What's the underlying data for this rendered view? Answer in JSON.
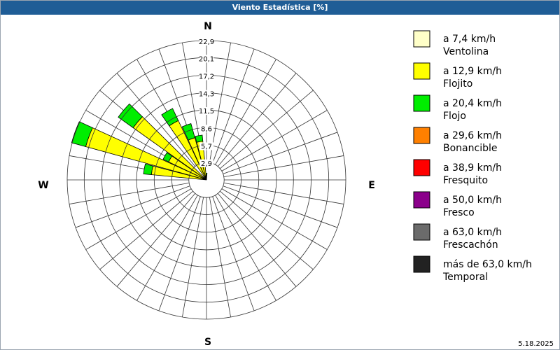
{
  "chart_data": {
    "type": "windrose",
    "title": "Viento Estadística [%]",
    "footer": "5.18.2025",
    "compass": [
      "N",
      "E",
      "S",
      "W"
    ],
    "directions": [
      0,
      10,
      20,
      30,
      40,
      50,
      60,
      70,
      80,
      90,
      100,
      110,
      120,
      130,
      140,
      150,
      160,
      170,
      180,
      190,
      200,
      210,
      220,
      230,
      240,
      250,
      260,
      270,
      280,
      290,
      300,
      310,
      320,
      330,
      340,
      350
    ],
    "rlim": [
      0,
      22.9
    ],
    "rticks": [
      {
        "value": 2.9,
        "label": "2,9"
      },
      {
        "value": 5.7,
        "label": "5,7"
      },
      {
        "value": 8.6,
        "label": "8,6"
      },
      {
        "value": 11.5,
        "label": "11,5"
      },
      {
        "value": 14.3,
        "label": "14,3"
      },
      {
        "value": 17.2,
        "label": "17,2"
      },
      {
        "value": 20.1,
        "label": "20,1"
      },
      {
        "value": 22.9,
        "label": "22,9"
      }
    ],
    "grid": true,
    "series": [
      {
        "name": "a 7,4 km/h",
        "description": "Ventolina",
        "color": "#ffffc8",
        "values": [
          0,
          0,
          0,
          0,
          0,
          0,
          0,
          0,
          0,
          0,
          0,
          0,
          0,
          0,
          0,
          0,
          0,
          0,
          0,
          0,
          0,
          0,
          0,
          0,
          0,
          0,
          0,
          0,
          0,
          0,
          0,
          0,
          0,
          0,
          0,
          0
        ]
      },
      {
        "name": "a 12,9 km/h",
        "description": "Flojito",
        "color": "#ffff00",
        "values": [
          0.8,
          0,
          0,
          0,
          0,
          0,
          0,
          0,
          0,
          0,
          0,
          0,
          0,
          0,
          0,
          0,
          0,
          0,
          0,
          0,
          0,
          0,
          0,
          0,
          0,
          0,
          0,
          0,
          9.1,
          20.6,
          6.9,
          14.8,
          0,
          10.8,
          7.2,
          6.4
        ]
      },
      {
        "name": "a 20,4 km/h",
        "description": "Flojo",
        "color": "#00ee00",
        "values": [
          0.3,
          0,
          0,
          0,
          0,
          0,
          0,
          0,
          0,
          0,
          0,
          0,
          0,
          0,
          0,
          0,
          0,
          0,
          0,
          0,
          0,
          0,
          0,
          0,
          0,
          0,
          0,
          0,
          1.3,
          2.4,
          1.0,
          3.0,
          0,
          2.2,
          2.4,
          1.0
        ]
      },
      {
        "name": "a 29,6 km/h",
        "description": "Bonancible",
        "color": "#ff8000",
        "values": [
          0,
          0,
          0,
          0,
          0,
          0,
          0,
          0,
          0,
          0,
          0,
          0,
          0,
          0,
          0,
          0,
          0,
          0,
          0,
          0,
          0,
          0,
          0,
          0,
          0,
          0,
          0,
          0,
          0,
          0,
          0,
          0,
          0,
          0,
          0,
          0
        ]
      },
      {
        "name": "a 38,9 km/h",
        "description": "Fresquito",
        "color": "#ff0000",
        "values": [
          0,
          0,
          0,
          0,
          0,
          0,
          0,
          0,
          0,
          0,
          0,
          0,
          0,
          0,
          0,
          0,
          0,
          0,
          0,
          0,
          0,
          0,
          0,
          0,
          0,
          0,
          0,
          0,
          0,
          0,
          0,
          0,
          0,
          0,
          0,
          0
        ]
      },
      {
        "name": "a 50,0 km/h",
        "description": "Fresco",
        "color": "#8b008b",
        "values": [
          0,
          0,
          0,
          0,
          0,
          0,
          0,
          0,
          0,
          0,
          0,
          0,
          0,
          0,
          0,
          0,
          0,
          0,
          0,
          0,
          0,
          0,
          0,
          0,
          0,
          0,
          0,
          0,
          0,
          0,
          0,
          0,
          0,
          0,
          0,
          0
        ]
      },
      {
        "name": "a 63,0 km/h",
        "description": "Frescachón",
        "color": "#6b6b6b",
        "values": [
          0,
          0,
          0,
          0,
          0,
          0,
          0,
          0,
          0,
          0,
          0,
          0,
          0,
          0,
          0,
          0,
          0,
          0,
          0,
          0,
          0,
          0,
          0,
          0,
          0,
          0,
          0,
          0,
          0,
          0,
          0,
          0,
          0,
          0,
          0,
          0
        ]
      },
      {
        "name": "más de 63,0 km/h",
        "description": "Temporal",
        "color": "#222222",
        "values": [
          0,
          0,
          0,
          0,
          0,
          0,
          0,
          0,
          0,
          0,
          0,
          0,
          0,
          0,
          0,
          0,
          0,
          0,
          0,
          0,
          0,
          0,
          0,
          0,
          0,
          0,
          0,
          0,
          0,
          0,
          0,
          0,
          0,
          0,
          0,
          0
        ]
      }
    ]
  }
}
